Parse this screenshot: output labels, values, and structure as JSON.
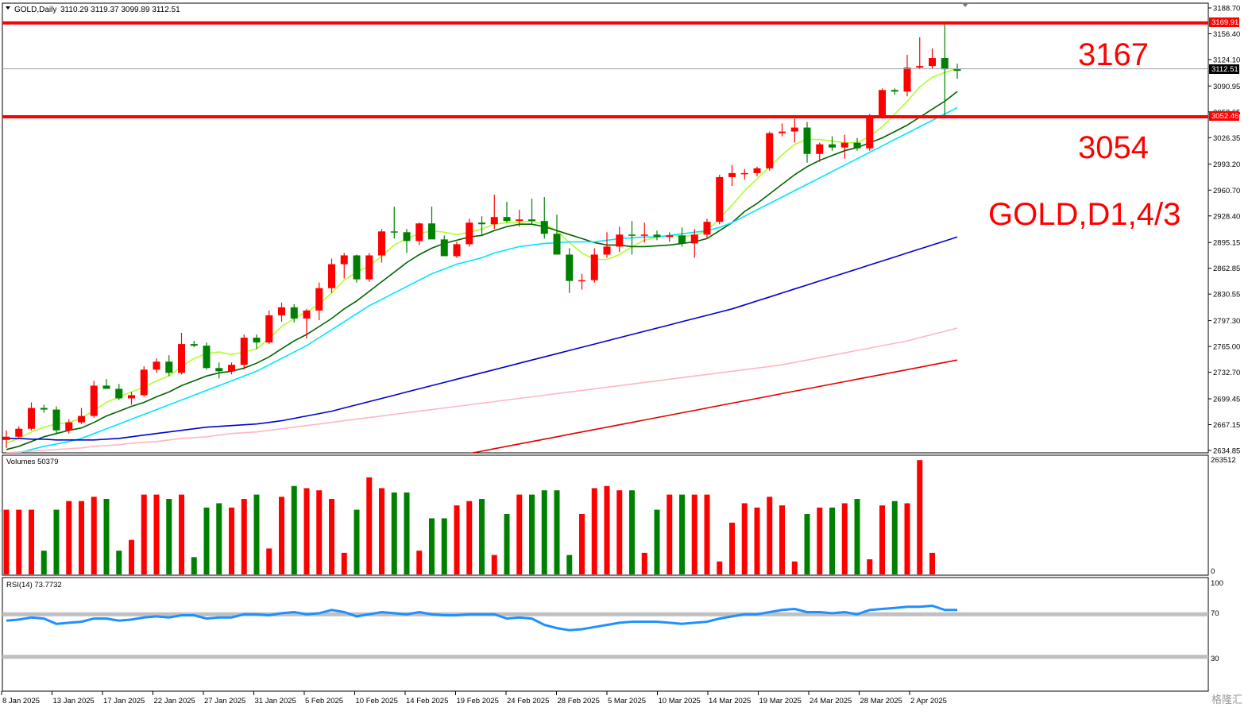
{
  "header": {
    "symbol": "GOLD,Daily",
    "ohlc": "3110.29 3119.37 3099.89 3112.51"
  },
  "price_labels": {
    "resistance_box": "3169.91",
    "support_box": "3052.46",
    "current_box": "3112.51"
  },
  "annotations": {
    "resistance": "3167",
    "support": "3054",
    "title": "GOLD,D1,4/3"
  },
  "volume_pane": {
    "label": "Volumes 50379",
    "max_label": "263512",
    "zero_label": "0"
  },
  "rsi_pane": {
    "label": "RSI(14) 73.7732",
    "top_label": "100",
    "high_label": "70",
    "low_label": "30"
  },
  "watermark": "格隆汇",
  "colors": {
    "bull": "#ff0000",
    "bear": "#008000",
    "ma5": "#adff2f",
    "ma10": "#006400",
    "ma20": "#00e5ff",
    "ma60": "#0000cd",
    "ma120": "#ffb6c1",
    "ma200": "#e00000",
    "rsi": "#1e90ff",
    "level_line": "#ff0000"
  },
  "chart_data": [
    {
      "type": "candlestick",
      "title": "GOLD,Daily",
      "x_dates": [
        "8 Jan 2025",
        "13 Jan 2025",
        "17 Jan 2025",
        "22 Jan 2025",
        "27 Jan 2025",
        "31 Jan 2025",
        "5 Feb 2025",
        "10 Feb 2025",
        "14 Feb 2025",
        "19 Feb 2025",
        "24 Feb 2025",
        "28 Feb 2025",
        "5 Mar 2025",
        "10 Mar 2025",
        "14 Mar 2025",
        "19 Mar 2025",
        "24 Mar 2025",
        "28 Mar 2025",
        "2 Apr 2025"
      ],
      "y_ticks": [
        3188.7,
        3156.4,
        3124.1,
        3090.95,
        3058.65,
        3026.35,
        2993.2,
        2960.7,
        2928.4,
        2895.15,
        2862.85,
        2830.55,
        2797.3,
        2765.0,
        2732.7,
        2699.45,
        2667.15,
        2634.85
      ],
      "ylim": [
        2634.85,
        3188.7
      ],
      "candles_ohlc": [
        [
          2648,
          2660,
          2638,
          2652
        ],
        [
          2652,
          2665,
          2650,
          2662
        ],
        [
          2662,
          2695,
          2660,
          2688
        ],
        [
          2688,
          2692,
          2682,
          2686
        ],
        [
          2686,
          2690,
          2655,
          2660
        ],
        [
          2660,
          2674,
          2656,
          2670
        ],
        [
          2670,
          2688,
          2668,
          2678
        ],
        [
          2678,
          2722,
          2676,
          2716
        ],
        [
          2716,
          2724,
          2712,
          2712
        ],
        [
          2712,
          2718,
          2698,
          2700
        ],
        [
          2700,
          2708,
          2692,
          2704
        ],
        [
          2704,
          2740,
          2702,
          2736
        ],
        [
          2736,
          2750,
          2732,
          2746
        ],
        [
          2746,
          2754,
          2728,
          2732
        ],
        [
          2732,
          2782,
          2730,
          2768
        ],
        [
          2768,
          2772,
          2764,
          2766
        ],
        [
          2766,
          2770,
          2736,
          2738
        ],
        [
          2738,
          2745,
          2725,
          2734
        ],
        [
          2734,
          2745,
          2730,
          2742
        ],
        [
          2742,
          2780,
          2736,
          2776
        ],
        [
          2776,
          2780,
          2762,
          2770
        ],
        [
          2770,
          2810,
          2768,
          2804
        ],
        [
          2804,
          2820,
          2796,
          2814
        ],
        [
          2814,
          2818,
          2795,
          2800
        ],
        [
          2800,
          2812,
          2775,
          2810
        ],
        [
          2810,
          2845,
          2798,
          2838
        ],
        [
          2838,
          2875,
          2832,
          2868
        ],
        [
          2868,
          2882,
          2850,
          2879
        ],
        [
          2879,
          2880,
          2845,
          2849
        ],
        [
          2849,
          2882,
          2846,
          2879
        ],
        [
          2879,
          2912,
          2870,
          2909
        ],
        [
          2909,
          2940,
          2900,
          2908
        ],
        [
          2908,
          2912,
          2882,
          2897
        ],
        [
          2897,
          2920,
          2892,
          2919
        ],
        [
          2919,
          2940,
          2905,
          2899
        ],
        [
          2899,
          2904,
          2880,
          2878
        ],
        [
          2878,
          2896,
          2876,
          2893
        ],
        [
          2893,
          2925,
          2890,
          2920
        ],
        [
          2920,
          2928,
          2905,
          2918
        ],
        [
          2918,
          2955,
          2912,
          2927
        ],
        [
          2927,
          2946,
          2920,
          2922
        ],
        [
          2922,
          2936,
          2915,
          2924
        ],
        [
          2924,
          2950,
          2918,
          2922
        ],
        [
          2922,
          2952,
          2900,
          2906
        ],
        [
          2906,
          2930,
          2888,
          2880
        ],
        [
          2880,
          2888,
          2832,
          2847
        ],
        [
          2847,
          2856,
          2836,
          2848
        ],
        [
          2848,
          2888,
          2845,
          2880
        ],
        [
          2880,
          2908,
          2876,
          2890
        ],
        [
          2890,
          2915,
          2883,
          2905
        ],
        [
          2905,
          2922,
          2880,
          2904
        ],
        [
          2904,
          2920,
          2895,
          2905
        ],
        [
          2905,
          2910,
          2898,
          2902
        ],
        [
          2902,
          2908,
          2896,
          2904
        ],
        [
          2904,
          2914,
          2890,
          2894
        ],
        [
          2894,
          2912,
          2876,
          2905
        ],
        [
          2905,
          2925,
          2900,
          2921
        ],
        [
          2921,
          2980,
          2918,
          2977
        ],
        [
          2977,
          2992,
          2966,
          2982
        ],
        [
          2982,
          2987,
          2974,
          2982
        ],
        [
          2982,
          2990,
          2978,
          2988
        ],
        [
          2988,
          3034,
          2985,
          3032
        ],
        [
          3032,
          3044,
          3028,
          3034
        ],
        [
          3034,
          3050,
          3020,
          3039
        ],
        [
          3039,
          3046,
          2995,
          3006
        ],
        [
          3006,
          3020,
          2996,
          3018
        ],
        [
          3018,
          3028,
          3010,
          3014
        ],
        [
          3014,
          3030,
          3000,
          3020
        ],
        [
          3020,
          3026,
          3010,
          3013
        ],
        [
          3013,
          3056,
          3010,
          3053
        ],
        [
          3053,
          3088,
          3050,
          3086
        ],
        [
          3086,
          3088,
          3080,
          3084
        ],
        [
          3084,
          3130,
          3078,
          3114
        ],
        [
          3114,
          3152,
          3112,
          3116
        ],
        [
          3116,
          3138,
          3112,
          3126
        ],
        [
          3126,
          3172,
          3052,
          3112
        ],
        [
          3112,
          3119,
          3100,
          3110
        ]
      ],
      "moving_averages": [
        {
          "name": "MA5",
          "color": "#adff2f",
          "values": [
            2644,
            2650,
            2658,
            2664,
            2668,
            2670,
            2675,
            2685,
            2695,
            2702,
            2708,
            2714,
            2722,
            2728,
            2740,
            2750,
            2756,
            2758,
            2755,
            2758,
            2762,
            2775,
            2790,
            2800,
            2808,
            2818,
            2832,
            2848,
            2858,
            2866,
            2878,
            2892,
            2900,
            2906,
            2910,
            2908,
            2905,
            2908,
            2912,
            2918,
            2920,
            2920,
            2922,
            2918,
            2910,
            2895,
            2882,
            2874,
            2874,
            2880,
            2890,
            2898,
            2902,
            2904,
            2903,
            2904,
            2910,
            2925,
            2942,
            2960,
            2975,
            2990,
            3005,
            3018,
            3024,
            3024,
            3022,
            3020,
            3020,
            3028,
            3040,
            3056,
            3072,
            3090,
            3102,
            3108,
            3113
          ]
        },
        {
          "name": "MA10",
          "color": "#006400",
          "values": [
            2636,
            2640,
            2646,
            2652,
            2656,
            2660,
            2663,
            2670,
            2678,
            2684,
            2690,
            2695,
            2702,
            2708,
            2716,
            2722,
            2728,
            2732,
            2734,
            2738,
            2744,
            2752,
            2762,
            2772,
            2780,
            2790,
            2800,
            2812,
            2822,
            2834,
            2846,
            2858,
            2870,
            2880,
            2888,
            2894,
            2898,
            2902,
            2904,
            2910,
            2915,
            2918,
            2918,
            2915,
            2910,
            2905,
            2900,
            2895,
            2892,
            2892,
            2890,
            2890,
            2891,
            2892,
            2894,
            2896,
            2900,
            2910,
            2920,
            2934,
            2944,
            2956,
            2968,
            2980,
            2990,
            2998,
            3004,
            3010,
            3014,
            3020,
            3026,
            3034,
            3042,
            3052,
            3062,
            3072,
            3084
          ]
        },
        {
          "name": "MA20",
          "color": "#00e5ff",
          "values": [
            2630,
            2632,
            2636,
            2640,
            2643,
            2646,
            2650,
            2656,
            2662,
            2668,
            2674,
            2680,
            2686,
            2692,
            2698,
            2704,
            2710,
            2716,
            2722,
            2728,
            2734,
            2742,
            2750,
            2758,
            2766,
            2776,
            2786,
            2796,
            2806,
            2816,
            2824,
            2832,
            2840,
            2848,
            2856,
            2862,
            2868,
            2872,
            2876,
            2882,
            2886,
            2890,
            2892,
            2894,
            2895,
            2896,
            2896,
            2896,
            2898,
            2900,
            2901,
            2902,
            2902,
            2904,
            2906,
            2908,
            2910,
            2914,
            2920,
            2928,
            2936,
            2944,
            2952,
            2960,
            2968,
            2976,
            2984,
            2992,
            3000,
            3008,
            3016,
            3024,
            3032,
            3040,
            3048,
            3056,
            3064
          ]
        },
        {
          "name": "MA60",
          "color": "#0000cd",
          "values": [
            2650,
            2650,
            2649,
            2649,
            2648,
            2648,
            2648,
            2648,
            2649,
            2650,
            2652,
            2654,
            2656,
            2658,
            2660,
            2662,
            2664,
            2665,
            2666,
            2667,
            2668,
            2670,
            2672,
            2675,
            2678,
            2681,
            2684,
            2688,
            2692,
            2696,
            2700,
            2704,
            2708,
            2712,
            2716,
            2720,
            2724,
            2728,
            2732,
            2736,
            2740,
            2744,
            2748,
            2752,
            2756,
            2760,
            2764,
            2768,
            2772,
            2776,
            2780,
            2784,
            2788,
            2792,
            2796,
            2800,
            2804,
            2808,
            2812,
            2817,
            2822,
            2827,
            2832,
            2837,
            2842,
            2847,
            2852,
            2857,
            2862,
            2867,
            2872,
            2877,
            2882,
            2887,
            2892,
            2897,
            2902
          ]
        },
        {
          "name": "MA120",
          "color": "#ffb6c1",
          "values": [
            2632,
            2633,
            2634,
            2635,
            2636,
            2637,
            2638,
            2640,
            2641,
            2642,
            2644,
            2645,
            2646,
            2648,
            2650,
            2651,
            2652,
            2654,
            2656,
            2657,
            2658,
            2660,
            2662,
            2664,
            2666,
            2668,
            2670,
            2672,
            2674,
            2676,
            2678,
            2680,
            2682,
            2684,
            2686,
            2688,
            2690,
            2692,
            2694,
            2696,
            2698,
            2700,
            2702,
            2704,
            2706,
            2708,
            2710,
            2712,
            2714,
            2716,
            2718,
            2720,
            2722,
            2724,
            2726,
            2728,
            2730,
            2732,
            2734,
            2736,
            2738,
            2740,
            2742,
            2745,
            2748,
            2751,
            2754,
            2757,
            2760,
            2763,
            2766,
            2769,
            2772,
            2776,
            2780,
            2784,
            2788
          ]
        },
        {
          "name": "MA200",
          "color": "#e00000",
          "values": [
            2520,
            2523,
            2526,
            2529,
            2532,
            2535,
            2538,
            2541,
            2544,
            2547,
            2550,
            2553,
            2556,
            2559,
            2562,
            2565,
            2568,
            2571,
            2574,
            2577,
            2580,
            2583,
            2586,
            2589,
            2592,
            2595,
            2598,
            2601,
            2604,
            2607,
            2610,
            2613,
            2616,
            2619,
            2622,
            2625,
            2628,
            2631,
            2634,
            2637,
            2640,
            2643,
            2646,
            2649,
            2652,
            2655,
            2658,
            2661,
            2664,
            2667,
            2670,
            2673,
            2676,
            2679,
            2682,
            2685,
            2688,
            2691,
            2694,
            2697,
            2700,
            2703,
            2706,
            2709,
            2712,
            2715,
            2718,
            2721,
            2724,
            2727,
            2730,
            2733,
            2736,
            2739,
            2742,
            2745,
            2748
          ]
        }
      ],
      "levels": [
        {
          "name": "resistance",
          "value": 3169.91
        },
        {
          "name": "support",
          "value": 3052.46
        },
        {
          "name": "current",
          "value": 3112.51
        }
      ]
    },
    {
      "type": "bar",
      "title": "Volumes 50379",
      "ylim": [
        0,
        263512
      ],
      "values": [
        150000,
        150000,
        150000,
        55000,
        150000,
        170000,
        170000,
        180000,
        175000,
        55000,
        80000,
        185000,
        185000,
        175000,
        185000,
        40000,
        155000,
        165000,
        155000,
        175000,
        185000,
        60000,
        180000,
        205000,
        200000,
        195000,
        175000,
        50000,
        150000,
        225000,
        200000,
        190000,
        190000,
        55000,
        130000,
        130000,
        160000,
        170000,
        175000,
        45000,
        140000,
        185000,
        185000,
        195000,
        195000,
        45000,
        140000,
        200000,
        205000,
        195000,
        195000,
        50000,
        150000,
        185000,
        185000,
        185000,
        185000,
        30000,
        120000,
        165000,
        155000,
        180000,
        160000,
        30000,
        140000,
        155000,
        155000,
        165000,
        175000,
        35000,
        160000,
        170000,
        165000,
        265000,
        50000
      ]
    },
    {
      "type": "line",
      "title": "RSI(14) 73.7732",
      "ylim": [
        0,
        100
      ],
      "levels": [
        70,
        30
      ],
      "values": [
        64,
        65,
        67,
        66,
        61,
        62,
        63,
        66,
        66,
        64,
        65,
        67,
        68,
        67,
        69,
        69,
        66,
        67,
        67,
        70,
        70,
        69,
        71,
        72,
        70,
        71,
        74,
        72,
        68,
        70,
        72,
        71,
        70,
        72,
        70,
        69,
        69,
        70,
        70,
        70,
        66,
        67,
        66,
        60,
        57,
        55,
        56,
        58,
        60,
        62,
        63,
        63,
        63,
        62,
        61,
        62,
        63,
        66,
        68,
        70,
        70,
        72,
        74,
        75,
        72,
        72,
        71,
        72,
        70,
        74,
        75,
        76,
        77,
        77,
        78,
        74,
        74
      ]
    }
  ]
}
